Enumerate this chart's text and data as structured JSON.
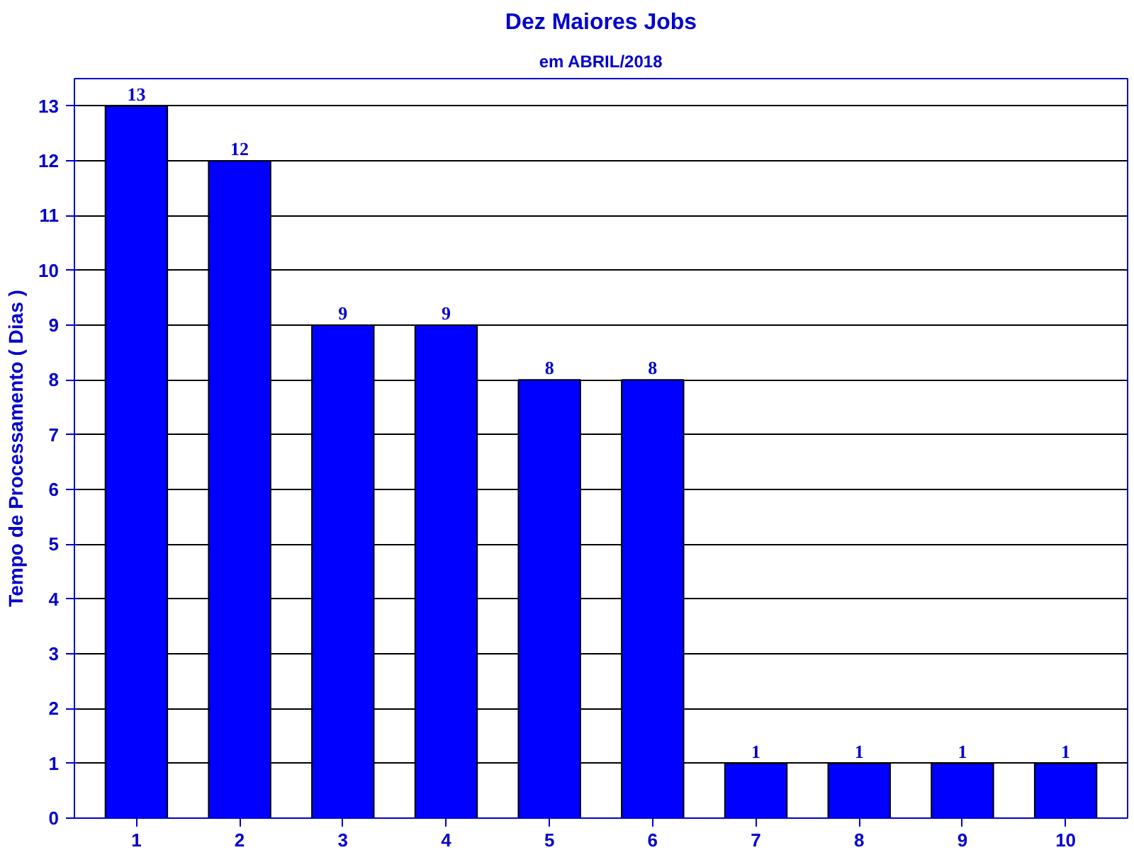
{
  "chart_data": {
    "type": "bar",
    "title": "Dez Maiores Jobs",
    "subtitle": "em ABRIL/2018",
    "ylabel": "Tempo de Processamento ( Dias )",
    "categories": [
      "1",
      "2",
      "3",
      "4",
      "5",
      "6",
      "7",
      "8",
      "9",
      "10"
    ],
    "values": [
      13,
      12,
      9,
      9,
      8,
      8,
      1,
      1,
      1,
      1
    ],
    "color": "#0000ff",
    "ylim": [
      0,
      13.5
    ],
    "yticks": [
      0,
      1,
      2,
      3,
      4,
      5,
      6,
      7,
      8,
      9,
      10,
      11,
      12,
      13
    ],
    "grid": "y",
    "data_labels": true
  }
}
